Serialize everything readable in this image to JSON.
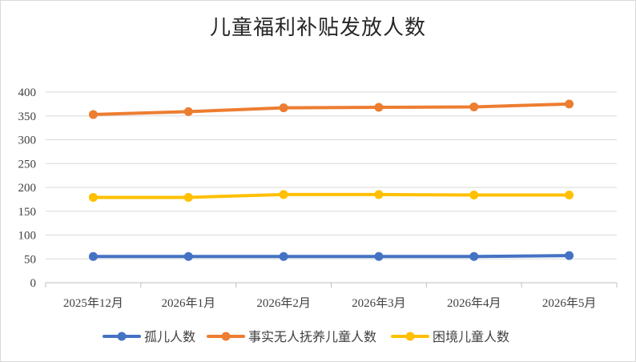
{
  "chart_data": {
    "type": "line",
    "title": "儿童福利补贴发放人数",
    "categories": [
      "2025年12月",
      "2026年1月",
      "2026年2月",
      "2026年3月",
      "2026年4月",
      "2026年5月"
    ],
    "ylim": [
      0,
      400
    ],
    "yticks": [
      0,
      50,
      100,
      150,
      200,
      250,
      300,
      350,
      400
    ],
    "grid": true,
    "legend_position": "bottom",
    "series": [
      {
        "name": "孤儿人数",
        "color": "#4472c4",
        "values": [
          55,
          55,
          55,
          55,
          55,
          57
        ]
      },
      {
        "name": "事实无人抚养儿童人数",
        "color": "#ed7d31",
        "values": [
          353,
          359,
          367,
          368,
          369,
          375
        ]
      },
      {
        "name": "困境儿童人数",
        "color": "#ffc000",
        "values": [
          179,
          179,
          185,
          185,
          184,
          184
        ]
      }
    ]
  }
}
